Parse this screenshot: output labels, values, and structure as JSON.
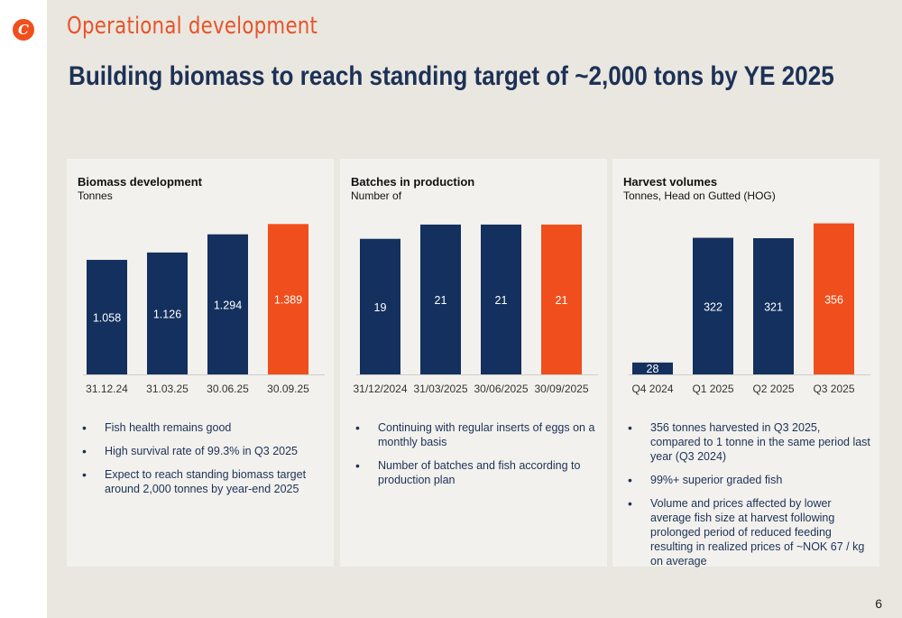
{
  "logo": {
    "letter": "C"
  },
  "section_title": "Operational development",
  "headline": "Building biomass to reach standing target of ~2,000 tons by YE 2025",
  "page_number": "6",
  "colors": {
    "navy": "#13305e",
    "orange": "#f04e1c",
    "panel": "#f2f1ed",
    "background": "#e9e7df"
  },
  "panels": [
    {
      "title": "Biomass development",
      "subtitle": "Tonnes",
      "bullets": [
        "Fish health remains good",
        "High survival rate of 99.3% in Q3 2025",
        "Expect to reach standing biomass target around 2,000 tonnes by year-end 2025"
      ]
    },
    {
      "title": "Batches in production",
      "subtitle": "Number of",
      "bullets": [
        "Continuing with regular inserts of eggs on a monthly basis",
        "Number of batches and fish according to production plan"
      ]
    },
    {
      "title": "Harvest volumes",
      "subtitle": "Tonnes, Head on Gutted (HOG)",
      "bullets": [
        "356 tonnes harvested in Q3 2025, compared to 1 tonne in the same period last year (Q3 2024)",
        "99%+ superior graded fish",
        "Volume and prices affected by lower average fish size at harvest following prolonged period of reduced feeding resulting in realized prices of ~NOK 67 / kg on average"
      ]
    }
  ],
  "chart_data": [
    {
      "type": "bar",
      "title": "Biomass development",
      "ylabel": "Tonnes",
      "categories": [
        "31.12.24",
        "31.03.25",
        "30.06.25",
        "30.09.25"
      ],
      "values": [
        1.058,
        1.126,
        1.294,
        1.389
      ],
      "labels": [
        "1.058",
        "1.126",
        "1.294",
        "1.389"
      ],
      "highlight_index": 3,
      "ylim": [
        0,
        1.45
      ]
    },
    {
      "type": "bar",
      "title": "Batches in production",
      "ylabel": "Number of",
      "categories": [
        "31/12/2024",
        "31/03/2025",
        "30/06/2025",
        "30/09/2025"
      ],
      "values": [
        19,
        21,
        21,
        21
      ],
      "labels": [
        "19",
        "21",
        "21",
        "21"
      ],
      "highlight_index": 3,
      "ylim": [
        0,
        22
      ]
    },
    {
      "type": "bar",
      "title": "Harvest volumes",
      "ylabel": "Tonnes, Head on Gutted (HOG)",
      "categories": [
        "Q4 2024",
        "Q1 2025",
        "Q2 2025",
        "Q3 2025"
      ],
      "values": [
        28,
        322,
        321,
        356
      ],
      "labels": [
        "28",
        "322",
        "321",
        "356"
      ],
      "highlight_index": 3,
      "ylim": [
        0,
        370
      ]
    }
  ]
}
